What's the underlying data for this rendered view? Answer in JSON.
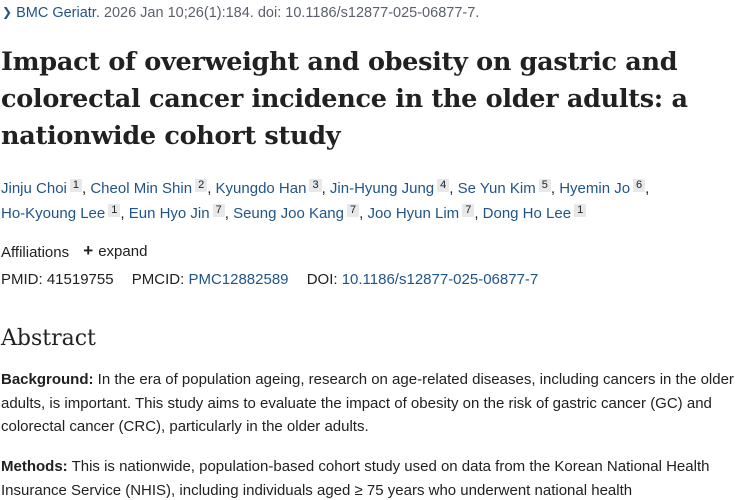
{
  "journal": {
    "name": "BMC Geriatr.",
    "citation": "2026 Jan 10;26(1):184. doi: 10.1186/s12877-025-06877-7."
  },
  "article": {
    "title": "Impact of overweight and obesity on gastric and colorectal cancer incidence in the older adults: a nationwide cohort study"
  },
  "authors": [
    {
      "name": "Jinju Choi",
      "aff": "1"
    },
    {
      "name": "Cheol Min Shin",
      "aff": "2"
    },
    {
      "name": "Kyungdo Han",
      "aff": "3"
    },
    {
      "name": "Jin-Hyung Jung",
      "aff": "4"
    },
    {
      "name": "Se Yun Kim",
      "aff": "5"
    },
    {
      "name": "Hyemin Jo",
      "aff": "6"
    },
    {
      "name": "Ho-Kyoung Lee",
      "aff": "1"
    },
    {
      "name": "Eun Hyo Jin",
      "aff": "7"
    },
    {
      "name": "Seung Joo Kang",
      "aff": "7"
    },
    {
      "name": "Joo Hyun Lim",
      "aff": "7"
    },
    {
      "name": "Dong Ho Lee",
      "aff": "1"
    }
  ],
  "affiliations": {
    "label": "Affiliations",
    "expand_label": "expand",
    "expand_icon": "plus-icon"
  },
  "identifiers": {
    "pmid_label": "PMID:",
    "pmid": "41519755",
    "pmcid_label": "PMCID:",
    "pmcid": "PMC12882589",
    "doi_label": "DOI:",
    "doi": "10.1186/s12877-025-06877-7"
  },
  "abstract": {
    "heading": "Abstract",
    "background_label": "Background:",
    "background_text": " In the era of population ageing, research on age-related diseases, including cancers in the older adults, is important. This study aims to evaluate the impact of obesity on the risk of gastric cancer (GC) and colorectal cancer (CRC), particularly in the older adults.",
    "methods_label": "Methods:",
    "methods_text": " This is nationwide, population-based cohort study used on data from the Korean National Health Insurance Service (NHIS), including individuals aged ≥ 75 years who underwent national health"
  },
  "colors": {
    "link": "#20558a",
    "text": "#212121",
    "muted": "#5b616b",
    "badge_bg": "#e6e8ea"
  }
}
